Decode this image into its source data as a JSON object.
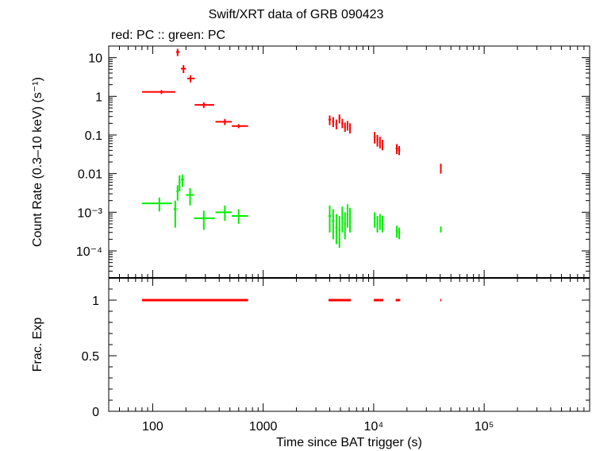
{
  "title": "Swift/XRT data of GRB 090423",
  "subtitle": "red: PC  :: green: PC",
  "colors": {
    "red": "#ff0000",
    "green": "#00ee00",
    "axes": "#000000"
  },
  "chart_data": [
    {
      "type": "scatter",
      "panel": "count-rate",
      "xscale": "log",
      "yscale": "log",
      "xlabel": "",
      "ylabel": "Count Rate (0.3–10 keV) (s⁻¹)",
      "xlim": [
        40,
        900000
      ],
      "ylim": [
        2e-05,
        20
      ],
      "yticks": [
        {
          "value": 10,
          "label": "10"
        },
        {
          "value": 1,
          "label": "1"
        },
        {
          "value": 0.1,
          "label": "0.1"
        },
        {
          "value": 0.01,
          "label": "0.01"
        },
        {
          "value": 0.001,
          "label": "10⁻³"
        },
        {
          "value": 0.0001,
          "label": "10⁻⁴"
        }
      ],
      "series": [
        {
          "name": "red",
          "color": "#ff0000",
          "points": [
            {
              "x": 120,
              "xlo": 80,
              "xhi": 160,
              "y": 1.3,
              "ylo": 1.15,
              "yhi": 1.45
            },
            {
              "x": 168,
              "xlo": 163,
              "xhi": 175,
              "y": 14,
              "ylo": 11,
              "yhi": 17
            },
            {
              "x": 190,
              "xlo": 180,
              "xhi": 200,
              "y": 5.2,
              "ylo": 4.0,
              "yhi": 6.4
            },
            {
              "x": 220,
              "xlo": 205,
              "xhi": 240,
              "y": 2.9,
              "ylo": 2.3,
              "yhi": 3.5
            },
            {
              "x": 290,
              "xlo": 240,
              "xhi": 360,
              "y": 0.6,
              "ylo": 0.5,
              "yhi": 0.7
            },
            {
              "x": 450,
              "xlo": 370,
              "xhi": 520,
              "y": 0.22,
              "ylo": 0.18,
              "yhi": 0.26
            },
            {
              "x": 600,
              "xlo": 520,
              "xhi": 730,
              "y": 0.17,
              "ylo": 0.15,
              "yhi": 0.19
            },
            {
              "x": 4000,
              "xlo": 3900,
              "xhi": 4100,
              "y": 0.25,
              "ylo": 0.18,
              "yhi": 0.32
            },
            {
              "x": 4300,
              "xlo": 4200,
              "xhi": 4400,
              "y": 0.22,
              "ylo": 0.16,
              "yhi": 0.29
            },
            {
              "x": 4600,
              "xlo": 4500,
              "xhi": 4700,
              "y": 0.19,
              "ylo": 0.14,
              "yhi": 0.25
            },
            {
              "x": 4900,
              "xlo": 4800,
              "xhi": 5000,
              "y": 0.27,
              "ylo": 0.2,
              "yhi": 0.34
            },
            {
              "x": 5200,
              "xlo": 5100,
              "xhi": 5300,
              "y": 0.2,
              "ylo": 0.15,
              "yhi": 0.26
            },
            {
              "x": 5500,
              "xlo": 5400,
              "xhi": 5600,
              "y": 0.16,
              "ylo": 0.12,
              "yhi": 0.21
            },
            {
              "x": 5800,
              "xlo": 5700,
              "xhi": 5900,
              "y": 0.18,
              "ylo": 0.13,
              "yhi": 0.23
            },
            {
              "x": 6100,
              "xlo": 6000,
              "xhi": 6200,
              "y": 0.15,
              "ylo": 0.11,
              "yhi": 0.2
            },
            {
              "x": 10200,
              "xlo": 10000,
              "xhi": 10400,
              "y": 0.09,
              "ylo": 0.06,
              "yhi": 0.12
            },
            {
              "x": 10800,
              "xlo": 10600,
              "xhi": 11000,
              "y": 0.075,
              "ylo": 0.05,
              "yhi": 0.1
            },
            {
              "x": 11400,
              "xlo": 11200,
              "xhi": 11600,
              "y": 0.065,
              "ylo": 0.045,
              "yhi": 0.09
            },
            {
              "x": 12000,
              "xlo": 11800,
              "xhi": 12200,
              "y": 0.055,
              "ylo": 0.04,
              "yhi": 0.075
            },
            {
              "x": 16200,
              "xlo": 15800,
              "xhi": 16600,
              "y": 0.045,
              "ylo": 0.032,
              "yhi": 0.058
            },
            {
              "x": 17000,
              "xlo": 16600,
              "xhi": 17400,
              "y": 0.04,
              "ylo": 0.03,
              "yhi": 0.052
            },
            {
              "x": 40500,
              "xlo": 40000,
              "xhi": 41000,
              "y": 0.014,
              "ylo": 0.01,
              "yhi": 0.018
            }
          ]
        },
        {
          "name": "green",
          "color": "#00ee00",
          "points": [
            {
              "x": 115,
              "xlo": 80,
              "xhi": 150,
              "y": 0.0017,
              "ylo": 0.00105,
              "yhi": 0.0024
            },
            {
              "x": 160,
              "xlo": 155,
              "xhi": 165,
              "y": 0.0012,
              "ylo": 0.0004,
              "yhi": 0.002
            },
            {
              "x": 168,
              "xlo": 164,
              "xhi": 172,
              "y": 0.0035,
              "ylo": 0.002,
              "yhi": 0.005
            },
            {
              "x": 175,
              "xlo": 171,
              "xhi": 179,
              "y": 0.006,
              "ylo": 0.0035,
              "yhi": 0.009
            },
            {
              "x": 186,
              "xlo": 180,
              "xhi": 192,
              "y": 0.007,
              "ylo": 0.0045,
              "yhi": 0.0095
            },
            {
              "x": 218,
              "xlo": 200,
              "xhi": 236,
              "y": 0.0028,
              "ylo": 0.0015,
              "yhi": 0.0042
            },
            {
              "x": 290,
              "xlo": 236,
              "xhi": 365,
              "y": 0.0007,
              "ylo": 0.00035,
              "yhi": 0.0011
            },
            {
              "x": 450,
              "xlo": 370,
              "xhi": 520,
              "y": 0.001,
              "ylo": 0.0006,
              "yhi": 0.0015
            },
            {
              "x": 600,
              "xlo": 520,
              "xhi": 730,
              "y": 0.0008,
              "ylo": 0.0005,
              "yhi": 0.0012
            },
            {
              "x": 4000,
              "xlo": 3900,
              "xhi": 4100,
              "y": 0.0008,
              "ylo": 0.0003,
              "yhi": 0.0015
            },
            {
              "x": 4300,
              "xlo": 4200,
              "xhi": 4400,
              "y": 0.0006,
              "ylo": 0.0002,
              "yhi": 0.0012
            },
            {
              "x": 4600,
              "xlo": 4500,
              "xhi": 4700,
              "y": 0.0004,
              "ylo": 0.00015,
              "yhi": 0.0009
            },
            {
              "x": 4900,
              "xlo": 4800,
              "xhi": 5000,
              "y": 0.00035,
              "ylo": 0.00012,
              "yhi": 0.0008
            },
            {
              "x": 5200,
              "xlo": 5100,
              "xhi": 5300,
              "y": 0.0007,
              "ylo": 0.0003,
              "yhi": 0.0014
            },
            {
              "x": 5500,
              "xlo": 5400,
              "xhi": 5600,
              "y": 0.0005,
              "ylo": 0.0002,
              "yhi": 0.001
            },
            {
              "x": 5800,
              "xlo": 5700,
              "xhi": 5900,
              "y": 0.0009,
              "ylo": 0.0004,
              "yhi": 0.0016
            },
            {
              "x": 6100,
              "xlo": 6000,
              "xhi": 6200,
              "y": 0.0007,
              "ylo": 0.0003,
              "yhi": 0.0013
            },
            {
              "x": 10200,
              "xlo": 10000,
              "xhi": 10400,
              "y": 0.0007,
              "ylo": 0.0004,
              "yhi": 0.001
            },
            {
              "x": 10800,
              "xlo": 10600,
              "xhi": 11000,
              "y": 0.0005,
              "ylo": 0.0003,
              "yhi": 0.0008
            },
            {
              "x": 11400,
              "xlo": 11200,
              "xhi": 11600,
              "y": 0.0006,
              "ylo": 0.00035,
              "yhi": 0.0009
            },
            {
              "x": 12000,
              "xlo": 11800,
              "xhi": 12200,
              "y": 0.0005,
              "ylo": 0.0003,
              "yhi": 0.0008
            },
            {
              "x": 16200,
              "xlo": 15800,
              "xhi": 16600,
              "y": 0.00033,
              "ylo": 0.00022,
              "yhi": 0.00045
            },
            {
              "x": 17000,
              "xlo": 16600,
              "xhi": 17400,
              "y": 0.0003,
              "ylo": 0.0002,
              "yhi": 0.0004
            },
            {
              "x": 40500,
              "xlo": 40000,
              "xhi": 41000,
              "y": 0.00036,
              "ylo": 0.0003,
              "yhi": 0.00043
            }
          ]
        }
      ]
    },
    {
      "type": "scatter",
      "panel": "fractional-exposure",
      "xscale": "log",
      "yscale": "linear",
      "xlabel": "Time since BAT trigger (s)",
      "ylabel": "Frac. Exp",
      "xlim": [
        40,
        900000
      ],
      "ylim": [
        0,
        1.2
      ],
      "xticks": [
        {
          "value": 100,
          "label": "100"
        },
        {
          "value": 1000,
          "label": "1000"
        },
        {
          "value": 10000,
          "label": "10⁴"
        },
        {
          "value": 100000,
          "label": "10⁵"
        }
      ],
      "yticks": [
        {
          "value": 0,
          "label": "0"
        },
        {
          "value": 0.5,
          "label": "0.5"
        },
        {
          "value": 1,
          "label": "1"
        }
      ],
      "series": [
        {
          "name": "red",
          "color": "#ff0000",
          "segments": [
            {
              "x0": 80,
              "x1": 730,
              "y": 1
            },
            {
              "x0": 3900,
              "x1": 6200,
              "y": 1
            },
            {
              "x0": 10000,
              "x1": 12200,
              "y": 1
            },
            {
              "x0": 15800,
              "x1": 17400,
              "y": 1
            },
            {
              "x0": 40000,
              "x1": 41000,
              "y": 1
            }
          ]
        }
      ]
    }
  ]
}
